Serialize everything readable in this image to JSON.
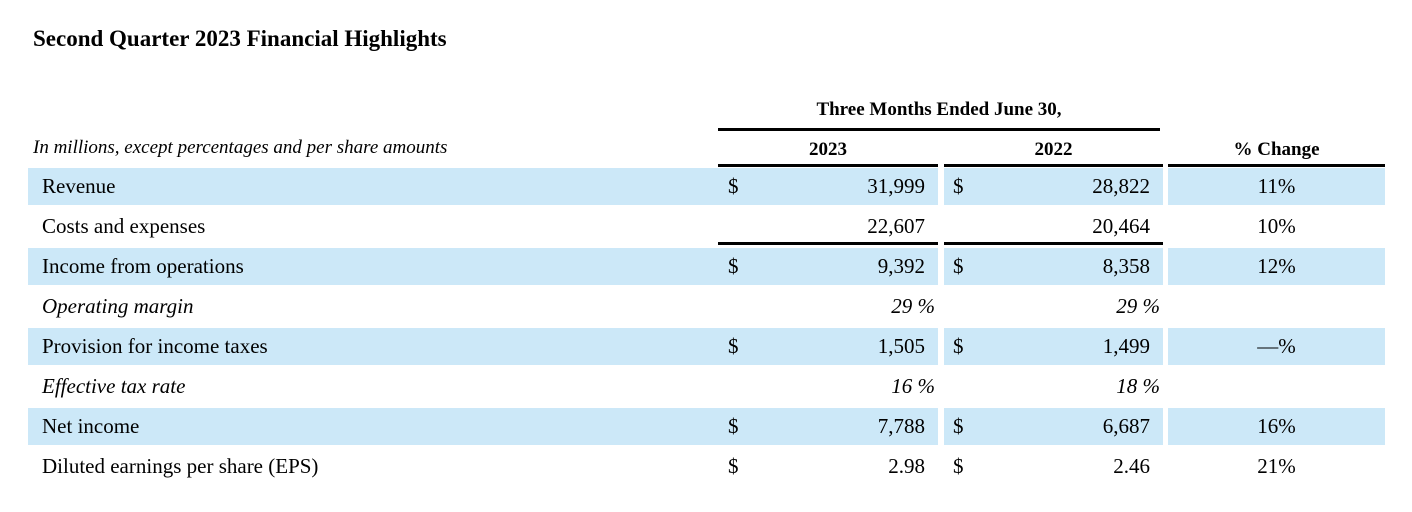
{
  "page": {
    "title": "Second Quarter 2023 Financial Highlights",
    "note": "In millions, except percentages and per share amounts"
  },
  "table": {
    "period_header": "Three Months Ended June 30,",
    "col_headers": {
      "y2023": "2023",
      "y2022": "2022",
      "change": "% Change"
    },
    "rows": [
      {
        "label": "Revenue",
        "cur1": "$",
        "val1": "31,999",
        "cur2": "$",
        "val2": "28,822",
        "chg": "11%"
      },
      {
        "label": "Costs and expenses",
        "cur1": "",
        "val1": "22,607",
        "cur2": "",
        "val2": "20,464",
        "chg": "10%"
      },
      {
        "label": "Income from operations",
        "cur1": "$",
        "val1": "9,392",
        "cur2": "$",
        "val2": "8,358",
        "chg": "12%"
      },
      {
        "label": "Operating margin",
        "cur1": "",
        "val1": "29 %",
        "cur2": "",
        "val2": "29 %",
        "chg": ""
      },
      {
        "label": "Provision for income taxes",
        "cur1": "$",
        "val1": "1,505",
        "cur2": "$",
        "val2": "1,499",
        "chg": "—%"
      },
      {
        "label": "Effective tax rate",
        "cur1": "",
        "val1": "16 %",
        "cur2": "",
        "val2": "18 %",
        "chg": ""
      },
      {
        "label": "Net income",
        "cur1": "$",
        "val1": "7,788",
        "cur2": "$",
        "val2": "6,687",
        "chg": "16%"
      },
      {
        "label": "Diluted earnings per share (EPS)",
        "cur1": "$",
        "val1": "2.98",
        "cur2": "$",
        "val2": "2.46",
        "chg": "21%"
      }
    ]
  },
  "colors": {
    "highlight": "#cce8f8",
    "rule": "#000000",
    "text": "#000000",
    "background": "#ffffff"
  }
}
